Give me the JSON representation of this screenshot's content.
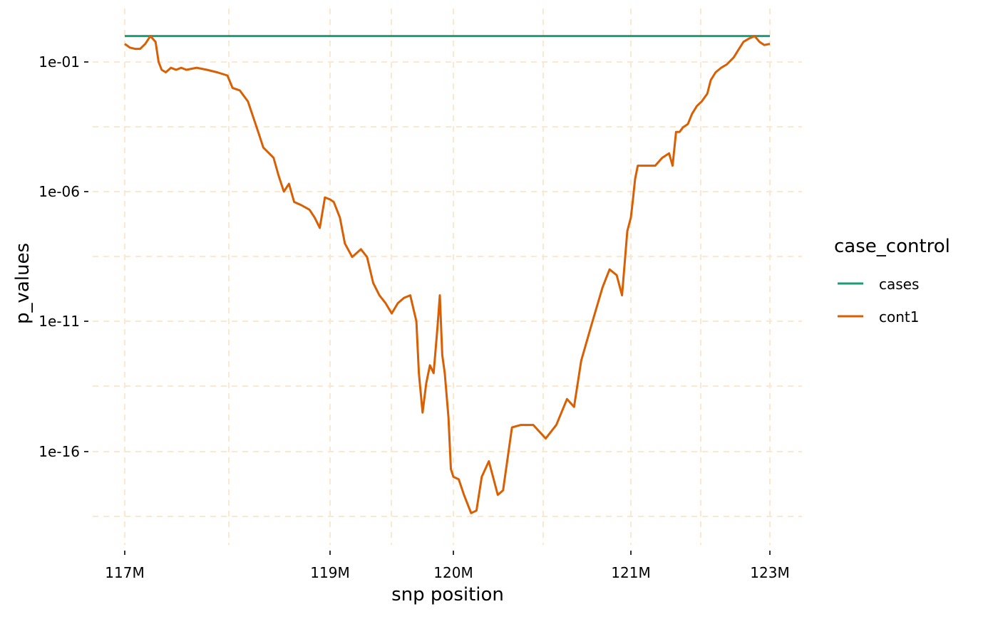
{
  "chart_data": {
    "type": "line",
    "xlabel": "snp position",
    "ylabel": "p_values",
    "x_tick_labels": [
      "117M",
      "119M",
      "120M",
      "121M",
      "123M"
    ],
    "y_tick_labels": [
      "1e-01",
      "1e-06",
      "1e-11",
      "1e-16"
    ],
    "y_scale": "log10",
    "y_range": [
      "1e-19.8",
      "1e0.9"
    ],
    "grid": true,
    "legend": {
      "title": "case_control",
      "position": "right",
      "entries": [
        "cases",
        "cont1"
      ]
    },
    "series": [
      {
        "name": "cases",
        "color": "#1b9e77",
        "points": [
          [
            117.0,
            1.0
          ],
          [
            123.0,
            1.0
          ]
        ]
      },
      {
        "name": "cont1",
        "color": "#d95f02",
        "points": [
          [
            117.0,
            0.5
          ],
          [
            117.05,
            0.36
          ],
          [
            117.1,
            0.32
          ],
          [
            117.15,
            0.32
          ],
          [
            117.2,
            0.5
          ],
          [
            117.25,
            1.0
          ],
          [
            117.3,
            0.6
          ],
          [
            117.33,
            0.1
          ],
          [
            117.36,
            0.05
          ],
          [
            117.4,
            0.04
          ],
          [
            117.45,
            0.06
          ],
          [
            117.5,
            0.05
          ],
          [
            117.55,
            0.06
          ],
          [
            117.6,
            0.05
          ],
          [
            117.7,
            0.06
          ],
          [
            117.8,
            0.05
          ],
          [
            117.9,
            0.04
          ],
          [
            118.0,
            0.03
          ],
          [
            118.05,
            0.01
          ],
          [
            118.12,
            0.008
          ],
          [
            118.2,
            0.003
          ],
          [
            118.3,
            0.0002
          ],
          [
            118.35,
            5e-05
          ],
          [
            118.45,
            2e-05
          ],
          [
            118.5,
            4e-06
          ],
          [
            118.55,
            1e-06
          ],
          [
            118.6,
            2e-06
          ],
          [
            118.65,
            4e-07
          ],
          [
            118.72,
            3e-07
          ],
          [
            118.8,
            2e-07
          ],
          [
            118.85,
            1e-07
          ],
          [
            118.9,
            4e-08
          ],
          [
            118.95,
            6e-07
          ],
          [
            119.0,
            5e-07
          ],
          [
            119.03,
            4e-07
          ],
          [
            119.08,
            1e-07
          ],
          [
            119.12,
            1e-08
          ],
          [
            119.18,
            3e-09
          ],
          [
            119.25,
            6e-09
          ],
          [
            119.3,
            3e-09
          ],
          [
            119.35,
            3e-10
          ],
          [
            119.4,
            1e-10
          ],
          [
            119.45,
            5e-11
          ],
          [
            119.5,
            2e-11
          ],
          [
            119.55,
            5e-11
          ],
          [
            119.6,
            8e-11
          ],
          [
            119.65,
            1e-10
          ],
          [
            119.7,
            1e-11
          ],
          [
            119.72,
            1e-13
          ],
          [
            119.75,
            3e-15
          ],
          [
            119.78,
            4e-14
          ],
          [
            119.81,
            2e-13
          ],
          [
            119.84,
            1e-13
          ],
          [
            119.87,
            5e-12
          ],
          [
            119.89,
            1e-10
          ],
          [
            119.91,
            5e-13
          ],
          [
            119.93,
            1e-13
          ],
          [
            119.96,
            2e-15
          ],
          [
            119.98,
            2e-17
          ],
          [
            120.0,
            1e-17
          ],
          [
            120.03,
            8e-18
          ],
          [
            120.06,
            2e-18
          ],
          [
            120.1,
            4e-19
          ],
          [
            120.13,
            5e-19
          ],
          [
            120.16,
            1e-17
          ],
          [
            120.2,
            4e-17
          ],
          [
            120.25,
            2e-18
          ],
          [
            120.28,
            3e-18
          ],
          [
            120.33,
            8e-16
          ],
          [
            120.38,
            1e-15
          ],
          [
            120.45,
            1e-15
          ],
          [
            120.52,
            3e-16
          ],
          [
            120.58,
            1e-15
          ],
          [
            120.64,
            1e-14
          ],
          [
            120.68,
            5e-15
          ],
          [
            120.72,
            3e-13
          ],
          [
            120.78,
            8e-12
          ],
          [
            120.84,
            2e-10
          ],
          [
            120.88,
            1e-09
          ],
          [
            120.92,
            6e-10
          ],
          [
            120.95,
            1e-10
          ],
          [
            120.98,
            3e-08
          ],
          [
            121.0,
            1e-07
          ],
          [
            121.03,
            5e-07
          ],
          [
            121.06,
            3e-06
          ],
          [
            121.1,
            1e-05
          ],
          [
            121.15,
            1e-05
          ],
          [
            121.25,
            1e-05
          ],
          [
            121.35,
            1e-05
          ],
          [
            121.45,
            2e-05
          ],
          [
            121.55,
            3e-05
          ],
          [
            121.6,
            1e-05
          ],
          [
            121.65,
            0.0002
          ],
          [
            121.7,
            0.0002
          ],
          [
            121.75,
            0.0003
          ],
          [
            121.82,
            0.0004
          ],
          [
            121.88,
            0.001
          ],
          [
            121.95,
            0.002
          ],
          [
            122.02,
            0.003
          ],
          [
            122.1,
            0.006
          ],
          [
            122.15,
            0.02
          ],
          [
            122.22,
            0.04
          ],
          [
            122.3,
            0.06
          ],
          [
            122.38,
            0.08
          ],
          [
            122.48,
            0.15
          ],
          [
            122.55,
            0.3
          ],
          [
            122.62,
            0.6
          ],
          [
            122.7,
            0.8
          ],
          [
            122.78,
            1.0
          ],
          [
            122.85,
            0.6
          ],
          [
            122.92,
            0.45
          ],
          [
            123.0,
            0.5
          ]
        ]
      }
    ]
  }
}
